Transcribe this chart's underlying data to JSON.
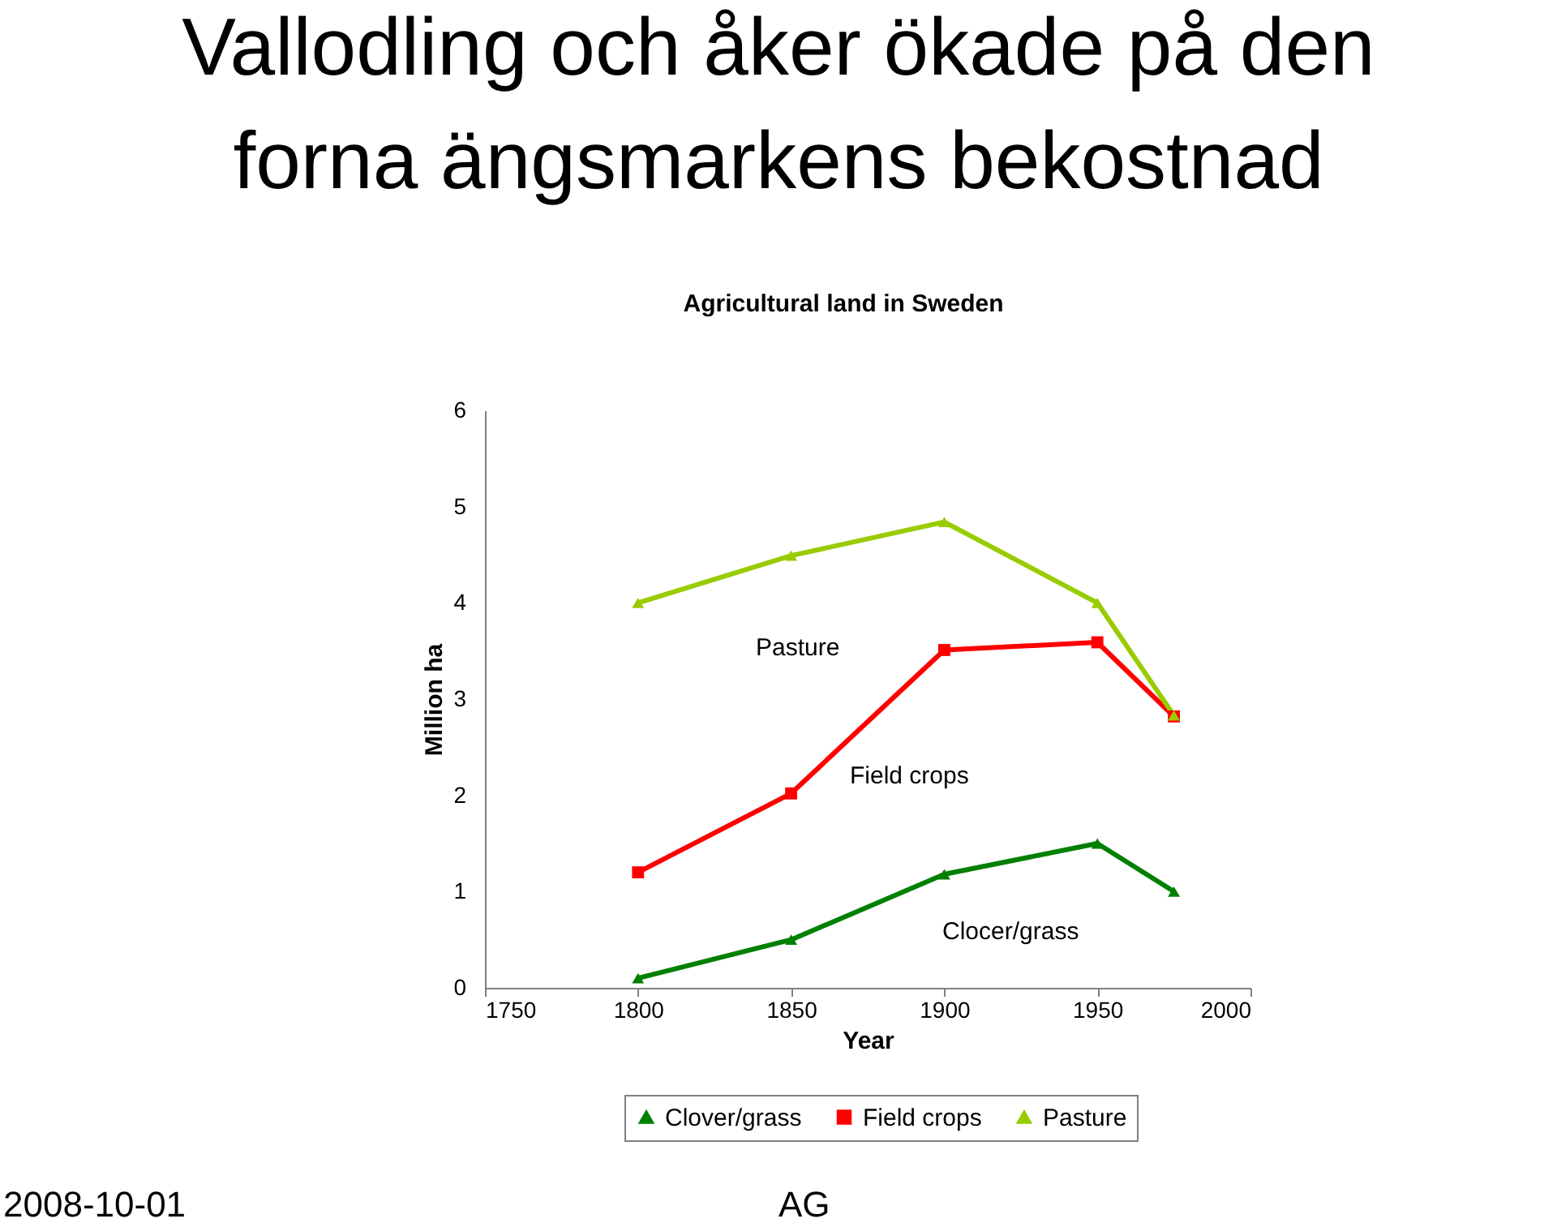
{
  "chart_data": {
    "type": "line",
    "title": "Vallodling och åker ökade på den forna ängsmarkens bekostnad",
    "subtitle": "Agricultural land in Sweden",
    "xlabel": "Year",
    "ylabel": "Million ha",
    "x": [
      1800,
      1850,
      1900,
      1950,
      1975
    ],
    "series": [
      {
        "name": "Clover/grass",
        "color": "#008000",
        "marker": "triangle",
        "values": [
          0.1,
          0.5,
          1.18,
          1.5,
          1.0
        ]
      },
      {
        "name": "Field crops",
        "color": "#ff0000",
        "marker": "square",
        "values": [
          1.2,
          2.02,
          3.51,
          3.59,
          2.82
        ]
      },
      {
        "name": "Pasture",
        "color": "#99cc00",
        "marker": "triangle",
        "values": [
          4.0,
          4.49,
          4.84,
          4.0,
          2.83
        ]
      }
    ],
    "xlim": [
      1750,
      2000
    ],
    "xticks": [
      1750,
      1800,
      1850,
      1900,
      1950,
      2000
    ],
    "ylim": [
      0,
      6
    ],
    "yticks": [
      0,
      1,
      2,
      3,
      4,
      5,
      6
    ],
    "grid": false,
    "legend": "bottom",
    "line_style": "solid",
    "annotations": [
      "Pasture",
      "Field crops",
      "Clocer/grass",
      "2008-10-01",
      "AG"
    ]
  }
}
